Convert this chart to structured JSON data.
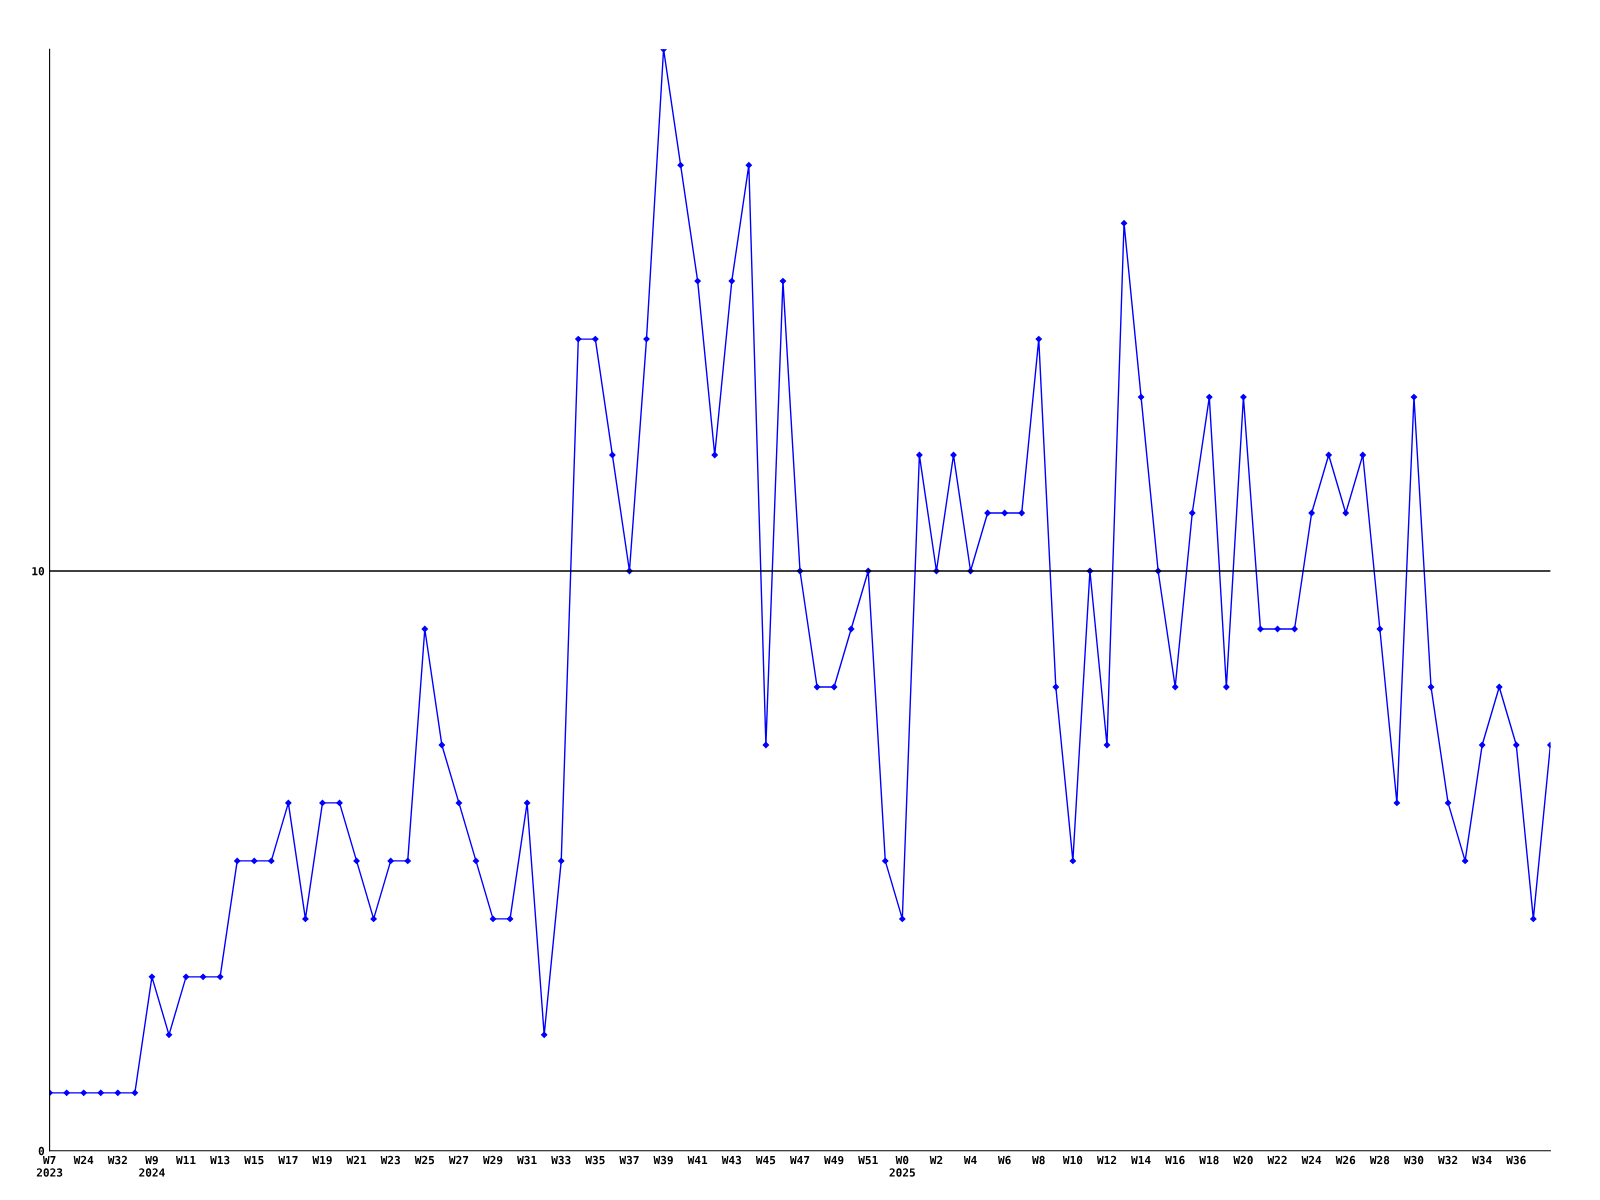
{
  "chart_data": {
    "type": "line",
    "categories": [
      "W7\n2023",
      null,
      "W24",
      null,
      "W32",
      null,
      "W9\n2024",
      null,
      "W11",
      null,
      "W13",
      null,
      "W15",
      null,
      "W17",
      null,
      "W19",
      null,
      "W21",
      null,
      "W23",
      null,
      "W25",
      null,
      "W27",
      null,
      "W29",
      null,
      "W31",
      null,
      "W33",
      null,
      "W35",
      null,
      "W37",
      null,
      "W39",
      null,
      "W41",
      null,
      "W43",
      null,
      "W45",
      null,
      "W47",
      null,
      "W49",
      null,
      "W51",
      null,
      "W0\n2025",
      null,
      "W2",
      null,
      "W4",
      null,
      "W6",
      null,
      "W8",
      null,
      "W10",
      null,
      "W12",
      null,
      "W14",
      null,
      "W16",
      null,
      "W18",
      null,
      "W20",
      null,
      "W22",
      null,
      "W24",
      null,
      "W26",
      null,
      "W28",
      null,
      "W30",
      null,
      "W32",
      null,
      "W34",
      null,
      "W36",
      null,
      null
    ],
    "series": [
      {
        "color": "#0000ff",
        "values": [
          1,
          1,
          1,
          1,
          1,
          1,
          3,
          2,
          3,
          3,
          3,
          5,
          5,
          5,
          6,
          4,
          6,
          6,
          5,
          4,
          5,
          5,
          9,
          7,
          6,
          5,
          4,
          4,
          6,
          2,
          5,
          14,
          14,
          12,
          10,
          14,
          19,
          17,
          15,
          12,
          15,
          17,
          7,
          15,
          10,
          8,
          8,
          9,
          10,
          5,
          4,
          12,
          10,
          12,
          10,
          11,
          11,
          11,
          14,
          8,
          5,
          10,
          7,
          16,
          13,
          10,
          8,
          11,
          13,
          8,
          13,
          9,
          9,
          9,
          11,
          12,
          11,
          12,
          9,
          6,
          13,
          8,
          6,
          5,
          7,
          8,
          7,
          4,
          7
        ]
      }
    ],
    "ylim": [
      0,
      19
    ],
    "yticks": [
      0,
      10
    ],
    "ref_lines": [
      {
        "axis": "y",
        "value": 10,
        "color": "#000000"
      }
    ],
    "marker": "diamond",
    "grid": false,
    "legend": false
  }
}
